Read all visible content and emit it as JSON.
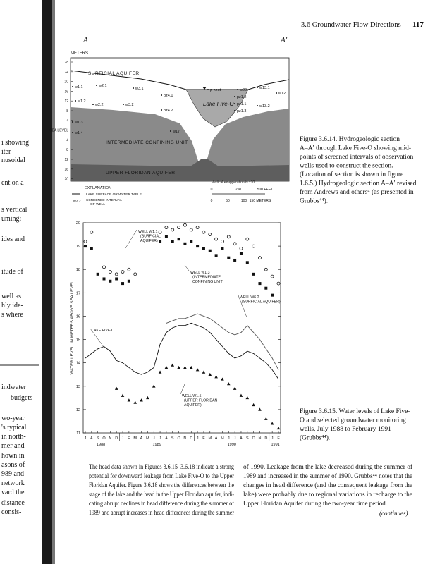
{
  "header": {
    "section": "3.6  Groundwater Flow Directions",
    "page": "117"
  },
  "margin_fragments": [
    "i showing",
    "iter",
    "nusoidal",
    "ent on a",
    "s vertical",
    "uming:",
    "ides and",
    "itude of",
    "well as",
    "hly ide-",
    "s where",
    "indwater",
    "budgets",
    "wo-year",
    "'s typical",
    "in north-",
    "mer and",
    "hown in",
    "asons of",
    "989 and",
    "network",
    "vard the",
    "distance",
    "consis-"
  ],
  "figure_section": {
    "left_label": "A",
    "right_label": "A′",
    "axis_title": "METERS",
    "axis_ticks": [
      "28",
      "24",
      "20",
      "16",
      "12",
      "8",
      "4",
      "SEA LEVEL",
      "4",
      "8",
      "12",
      "16",
      "20"
    ],
    "units": [
      "SURFICIAL AQUIFER",
      "INTERMEDIATE CONFINING UNIT",
      "UPPER FLORIDAN AQUIFER"
    ],
    "lake": "Lake Five-O",
    "wells": [
      "w1.1",
      "w2.1",
      "w3.1",
      "w1.2",
      "w2.2",
      "w3.2",
      "pz4.1",
      "pz4.2",
      "p nest",
      "w20",
      "pz1.2",
      "pz1.1",
      "pz1.3",
      "w13.1",
      "w12",
      "w13.2",
      "w1.3",
      "w1.4",
      "w17"
    ],
    "explanation": {
      "title": "EXPLANATION",
      "water_table": "LAKE SURFACE OR WATER TABLE",
      "well_example": "w2.2",
      "screened": [
        "SCREENED INTERVAL",
        "OF WELL"
      ]
    },
    "scale": {
      "note": "Vertical exaggeration is x10",
      "feet": [
        "0",
        "250",
        "500 FEET"
      ],
      "meters": [
        "0",
        "50",
        "100",
        "150 METERS"
      ]
    }
  },
  "captions": [
    {
      "lines": [
        "Figure 3.6.14.  Hydrogeologic section",
        "A–A′ through Lake Five-O showing mid-",
        "points of screened intervals of observation",
        "wells used to construct the section.",
        "(Location of section is shown in figure",
        "1.6.5.) Hydrogeologic section A–A′ revised",
        "from Andrews and others⁴ (as presented in",
        "Grubbs⁴⁴)."
      ]
    },
    {
      "lines": [
        "Figure 3.6.15.  Water levels of Lake Five-",
        "O and selected groundwater monitoring",
        "wells, July 1988 to February 1991",
        "(Grubbs⁴⁴)."
      ]
    }
  ],
  "chart_data": {
    "type": "line",
    "ylabel": "WATER LEVEL, IN METERS ABOVE SEA LEVEL",
    "categories": [
      "J",
      "A",
      "S",
      "O",
      "N",
      "D",
      "J",
      "F",
      "M",
      "A",
      "M",
      "J",
      "J",
      "A",
      "S",
      "O",
      "N",
      "D",
      "J",
      "F",
      "M",
      "A",
      "M",
      "J",
      "J",
      "A",
      "S",
      "O",
      "N",
      "D",
      "J",
      "F"
    ],
    "x_groups": [
      "1988",
      "1989",
      "1990",
      "1991"
    ],
    "ylim": [
      11,
      20
    ],
    "yticks": [
      11,
      12,
      13,
      14,
      15,
      16,
      17,
      18,
      19,
      20
    ],
    "series": [
      {
        "style": "line",
        "color": "#111",
        "values": [
          14.2,
          14.4,
          14.6,
          14.7,
          14.5,
          14.1,
          14.0,
          13.8,
          13.6,
          13.5,
          13.6,
          13.8,
          14.8,
          15.3,
          15.5,
          15.6,
          15.6,
          15.7,
          15.6,
          15.5,
          15.3,
          15.0,
          14.7,
          14.4,
          14.2,
          14.3,
          14.5,
          14.4,
          14.2,
          14.0,
          13.7,
          13.3
        ]
      },
      {
        "style": "line",
        "color": "#555",
        "values": [
          null,
          null,
          null,
          null,
          null,
          null,
          null,
          null,
          null,
          null,
          null,
          null,
          null,
          15.7,
          15.8,
          15.9,
          15.9,
          16.0,
          16.1,
          16.0,
          15.9,
          15.7,
          15.5,
          15.3,
          15.2,
          15.3,
          15.6,
          15.3,
          15.0,
          14.6,
          14.2,
          13.7
        ]
      },
      {
        "style": "circle",
        "color": "#111",
        "values": [
          19.2,
          19.6,
          null,
          18.1,
          17.9,
          17.8,
          17.9,
          18.0,
          17.8,
          null,
          null,
          null,
          19.6,
          19.8,
          19.7,
          19.8,
          19.9,
          19.7,
          19.8,
          19.6,
          19.5,
          19.3,
          19.2,
          19.4,
          19.1,
          18.9,
          19.3,
          19.0,
          18.5,
          18.0,
          17.7,
          17.4
        ]
      },
      {
        "style": "square",
        "color": "#111",
        "values": [
          19.0,
          18.9,
          17.8,
          17.6,
          17.5,
          17.6,
          17.4,
          17.5,
          null,
          null,
          null,
          null,
          19.2,
          19.4,
          19.2,
          19.3,
          19.1,
          19.2,
          19.0,
          18.9,
          18.8,
          18.6,
          18.9,
          18.5,
          18.4,
          18.7,
          18.3,
          17.8,
          17.4,
          17.2,
          16.9,
          null
        ]
      },
      {
        "style": "triangle",
        "color": "#111",
        "values": [
          null,
          null,
          null,
          null,
          null,
          12.9,
          12.6,
          12.4,
          12.3,
          12.4,
          12.5,
          13.0,
          13.6,
          13.8,
          13.9,
          13.8,
          13.8,
          13.8,
          13.7,
          13.6,
          13.5,
          13.4,
          13.3,
          13.1,
          12.9,
          12.6,
          12.5,
          12.2,
          12.0,
          11.6,
          11.4,
          11.2
        ]
      }
    ],
    "annotations": [
      [
        "WELL W1.1",
        "(SURFICIAL",
        "AQUIFER)"
      ],
      [
        "WELL W1.3",
        "(INTERMEDIATE",
        "CONFINING UNIT)"
      ],
      [
        "WELL W6.2",
        "(SURFICIAL AQUIFER)"
      ],
      [
        "LAKE FIVE-O"
      ],
      [
        "WELL W1.5",
        "(UPPER FLORIDAN",
        "AQUIFER)"
      ]
    ]
  },
  "body": {
    "left": [
      "The head data shown in Figures 3.6.15–3.6.18 indicate a strong",
      "potential for downward leakage from Lake Five-O to the Upper",
      "Floridan Aquifer. Figure 3.6.18 shows the differences between the",
      "stage of the lake and the head in the Upper Floridan aquifer, indi-",
      "cating abrupt declines in head difference during the summer of",
      "1989 and abrupt increases in head differences during the summer"
    ],
    "right": [
      "of 1990. Leakage from the lake decreased during the summer of",
      "1989 and increased in the summer of 1990. Grubbs⁴⁴ notes that the",
      "changes in head difference (and the consequent leakage from the",
      "lake) were probably due to regional variations in recharge to the",
      "Upper Floridan Aquifer during the two-year time period."
    ],
    "continues": "(continues)"
  }
}
